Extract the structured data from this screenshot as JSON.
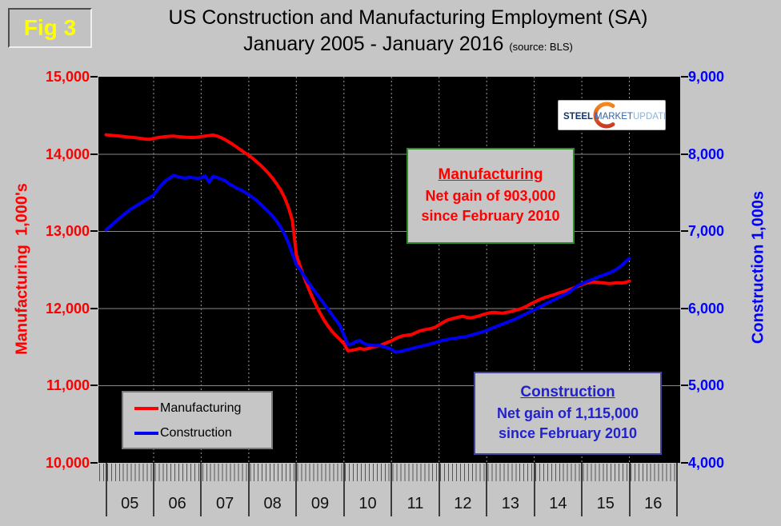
{
  "figure": {
    "label": "Fig 3"
  },
  "title": {
    "line1": "US Construction and Manufacturing Employment (SA)",
    "line2": "January 2005 - January 2016",
    "source": "(source: BLS)"
  },
  "logo": {
    "text1": "STEEL",
    "text2": "MARKET",
    "text3": "UPDATE"
  },
  "left_axis": {
    "title": "Manufacturing  1,000's",
    "color": "#ff0000",
    "min": 10000,
    "max": 15000,
    "tick_labels": [
      "15,000",
      "14,000",
      "13,000",
      "12,000",
      "11,000",
      "10,000"
    ]
  },
  "right_axis": {
    "title": "Construction 1,000s",
    "color": "#0000ff",
    "min": 4000,
    "max": 9000,
    "tick_labels": [
      "9,000",
      "8,000",
      "7,000",
      "6,000",
      "5,000",
      "4,000"
    ]
  },
  "x_axis": {
    "year_labels": [
      "05",
      "06",
      "07",
      "08",
      "09",
      "10",
      "11",
      "12",
      "13",
      "14",
      "15",
      "16"
    ]
  },
  "legend": {
    "items": [
      {
        "label": "Manufacturing",
        "color": "#ff0000"
      },
      {
        "label": "Construction",
        "color": "#0000ee"
      }
    ]
  },
  "annotations": {
    "manufacturing": {
      "line1": "Manufacturing",
      "line2": "Net gain of 903,000",
      "line3": "since February 2010"
    },
    "construction": {
      "line1": "Construction",
      "line2": "Net gain of 1,115,000",
      "line3": "since February 2010"
    }
  },
  "chart_data": {
    "type": "line",
    "x_unit": "month",
    "x_start": "2005-01",
    "x_end": "2016-01",
    "grid": {
      "horizontal": "solid",
      "vertical": "dashed"
    },
    "legend_position": "lower-left",
    "series": [
      {
        "name": "Manufacturing",
        "axis": "left",
        "color": "#ff0000",
        "values": [
          14253,
          14247,
          14242,
          14238,
          14233,
          14227,
          14222,
          14217,
          14211,
          14204,
          14197,
          14193,
          14205,
          14215,
          14223,
          14229,
          14233,
          14236,
          14230,
          14225,
          14221,
          14219,
          14217,
          14221,
          14229,
          14236,
          14243,
          14250,
          14237,
          14217,
          14191,
          14160,
          14127,
          14092,
          14056,
          14021,
          13986,
          13947,
          13903,
          13857,
          13806,
          13752,
          13690,
          13620,
          13542,
          13442,
          13312,
          13142,
          12700,
          12540,
          12400,
          12270,
          12150,
          12040,
          11940,
          11850,
          11772,
          11705,
          11650,
          11600,
          11545,
          11453,
          11458,
          11470,
          11483,
          11472,
          11480,
          11497,
          11510,
          11523,
          11540,
          11562,
          11582,
          11610,
          11633,
          11648,
          11655,
          11662,
          11684,
          11708,
          11722,
          11731,
          11742,
          11757,
          11789,
          11820,
          11849,
          11864,
          11877,
          11890,
          11900,
          11886,
          11880,
          11890,
          11904,
          11921,
          11934,
          11947,
          11951,
          11944,
          11940,
          11951,
          11960,
          11974,
          11989,
          12004,
          12029,
          12058,
          12083,
          12109,
          12129,
          12149,
          12164,
          12179,
          12199,
          12214,
          12229,
          12249,
          12269,
          12288,
          12309,
          12330,
          12340,
          12345,
          12340,
          12334,
          12329,
          12324,
          12329,
          12334,
          12330,
          12340,
          12356
        ]
      },
      {
        "name": "Construction",
        "axis": "right",
        "color": "#0000ee",
        "values": [
          7021,
          7064,
          7109,
          7154,
          7199,
          7239,
          7279,
          7314,
          7344,
          7374,
          7409,
          7439,
          7471,
          7542,
          7601,
          7656,
          7689,
          7726,
          7711,
          7699,
          7689,
          7704,
          7694,
          7689,
          7694,
          7719,
          7639,
          7714,
          7699,
          7679,
          7659,
          7619,
          7589,
          7559,
          7539,
          7509,
          7476,
          7439,
          7399,
          7354,
          7304,
          7254,
          7199,
          7134,
          7059,
          6969,
          6849,
          6709,
          6570,
          6500,
          6420,
          6340,
          6270,
          6200,
          6130,
          6060,
          5990,
          5920,
          5850,
          5780,
          5655,
          5535,
          5540,
          5572,
          5585,
          5550,
          5530,
          5525,
          5519,
          5524,
          5505,
          5492,
          5470,
          5435,
          5440,
          5454,
          5469,
          5479,
          5494,
          5504,
          5519,
          5529,
          5544,
          5559,
          5574,
          5589,
          5599,
          5609,
          5614,
          5624,
          5629,
          5639,
          5654,
          5669,
          5684,
          5699,
          5714,
          5739,
          5759,
          5779,
          5799,
          5819,
          5839,
          5859,
          5884,
          5909,
          5934,
          5959,
          5984,
          6009,
          6039,
          6064,
          6089,
          6114,
          6139,
          6164,
          6189,
          6219,
          6259,
          6299,
          6320,
          6345,
          6365,
          6385,
          6405,
          6425,
          6445,
          6462,
          6488,
          6518,
          6558,
          6605,
          6650
        ]
      }
    ]
  }
}
